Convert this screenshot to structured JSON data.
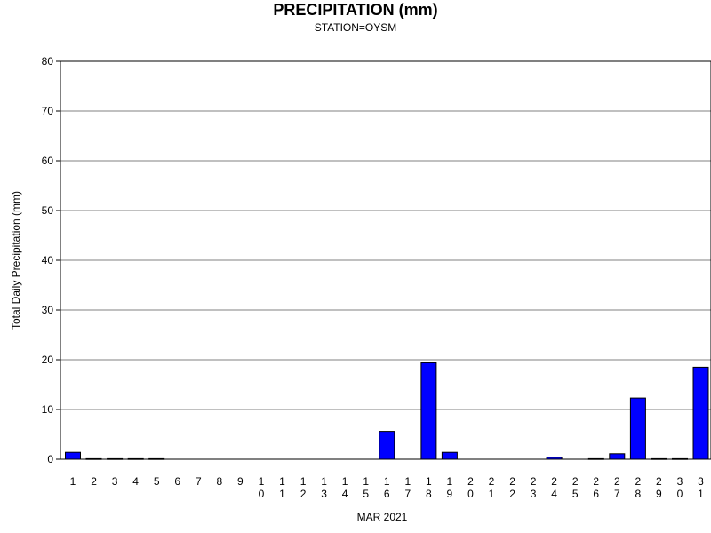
{
  "chart_data": {
    "type": "bar",
    "title": "PRECIPITATION (mm)",
    "subtitle": "STATION=OYSM",
    "xlabel": "MAR 2021",
    "ylabel": "Total Daily Precipitation (mm)",
    "ylim": [
      0,
      80
    ],
    "yticks": [
      0,
      10,
      20,
      30,
      40,
      50,
      60,
      70,
      80
    ],
    "grid": true,
    "bar_color": "#0000ff",
    "categories": [
      "1",
      "2",
      "3",
      "4",
      "5",
      "6",
      "7",
      "8",
      "9",
      "10",
      "11",
      "12",
      "13",
      "14",
      "15",
      "16",
      "17",
      "18",
      "19",
      "20",
      "21",
      "22",
      "23",
      "24",
      "25",
      "26",
      "27",
      "28",
      "29",
      "30",
      "31"
    ],
    "values": [
      1.4,
      0.1,
      0.1,
      0.1,
      0.1,
      0,
      0,
      0,
      0,
      0,
      0,
      0,
      0,
      0,
      0,
      5.6,
      0,
      19.4,
      1.4,
      0,
      0,
      0,
      0,
      0.4,
      0,
      0.1,
      1.1,
      12.3,
      0.1,
      0.1,
      18.5
    ]
  }
}
